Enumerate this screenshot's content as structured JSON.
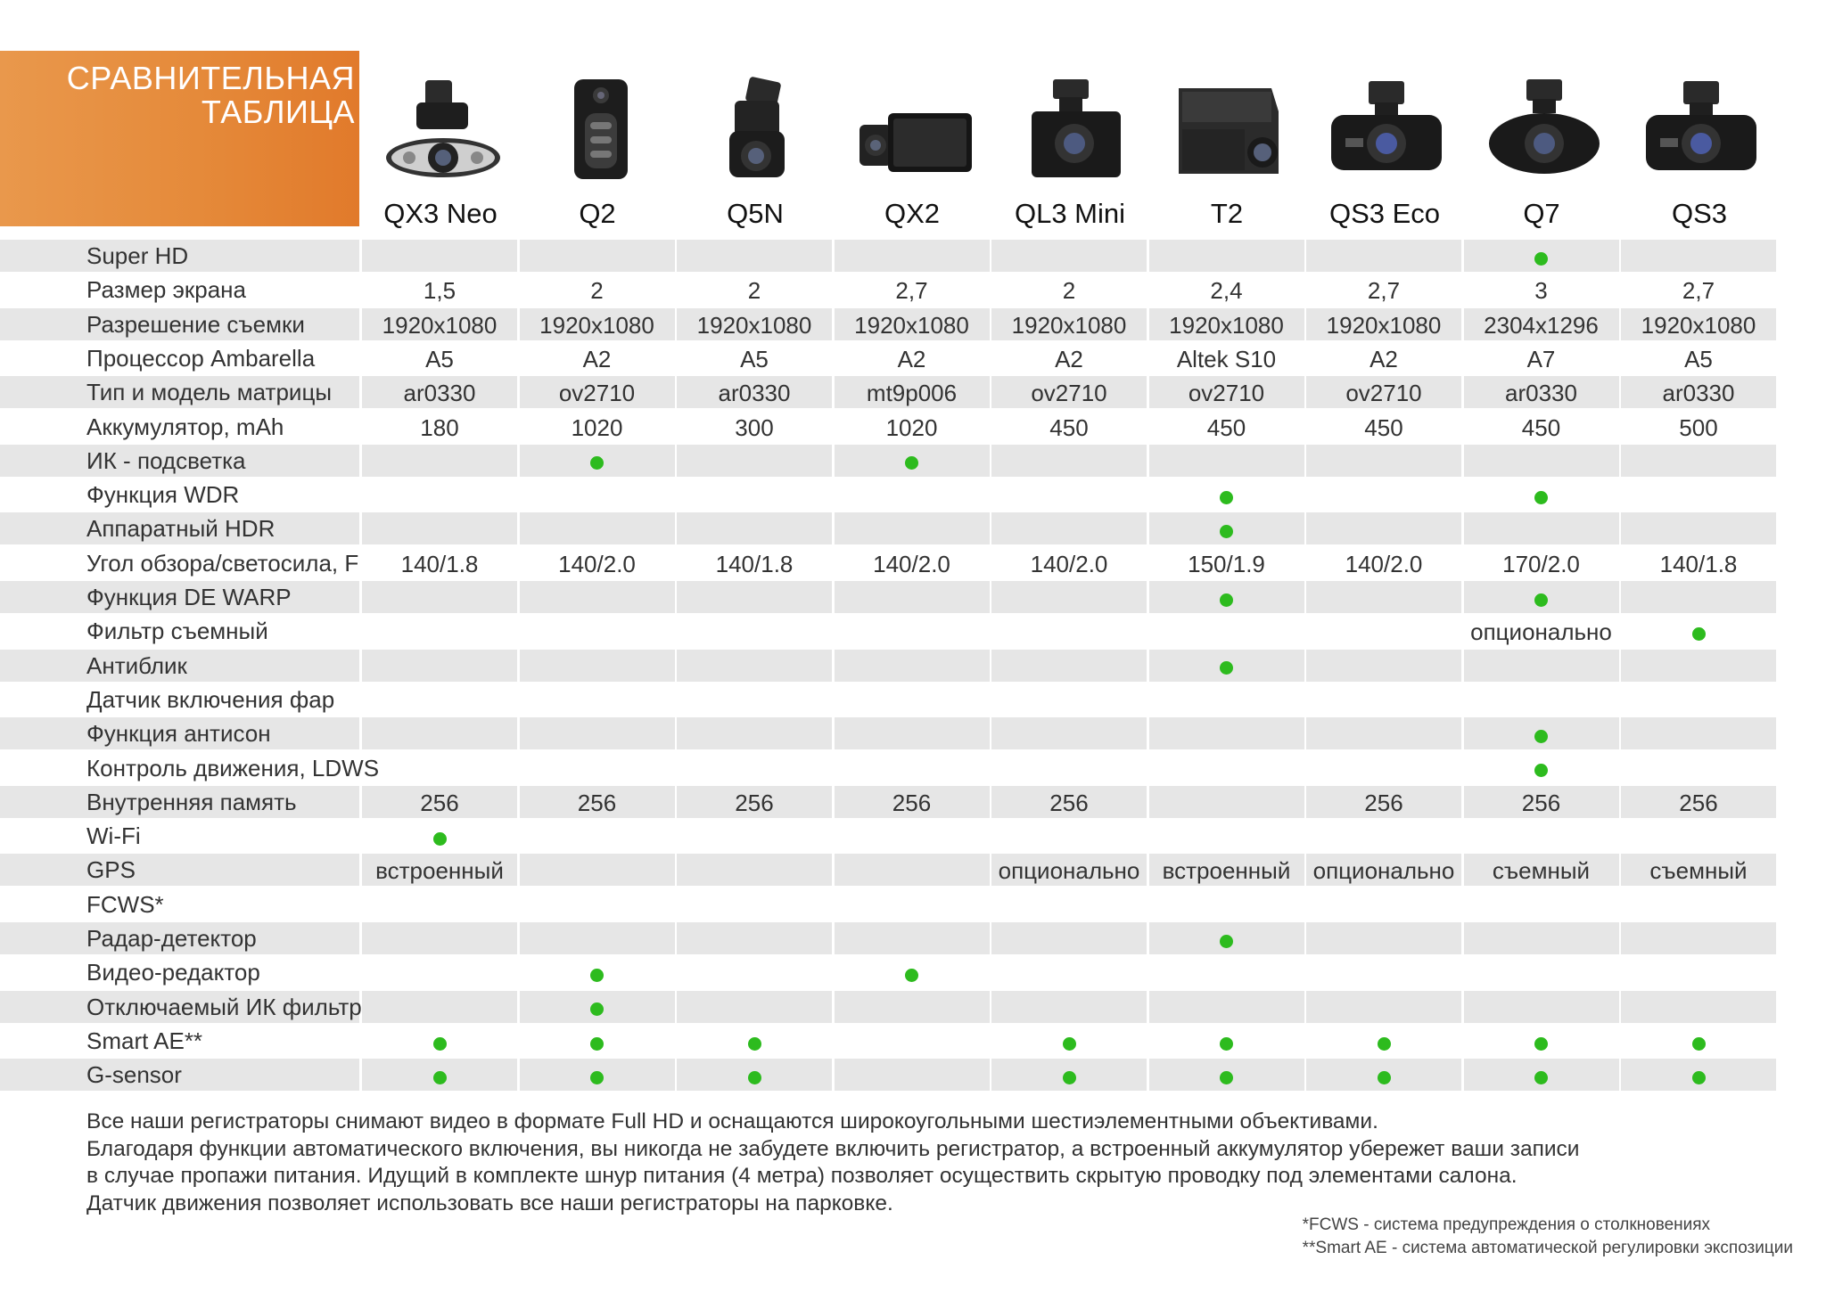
{
  "header": {
    "title_line1": "СРАВНИТЕЛЬНАЯ",
    "title_line2": "ТАБЛИЦА"
  },
  "models": [
    {
      "name": "QX3 Neo",
      "icon": "dashcam-qx3-neo-icon"
    },
    {
      "name": "Q2",
      "icon": "dashcam-q2-icon"
    },
    {
      "name": "Q5N",
      "icon": "dashcam-q5n-icon"
    },
    {
      "name": "QX2",
      "icon": "dashcam-qx2-icon"
    },
    {
      "name": "QL3 Mini",
      "icon": "dashcam-ql3-mini-icon"
    },
    {
      "name": "T2",
      "icon": "dashcam-t2-icon"
    },
    {
      "name": "QS3 Eco",
      "icon": "dashcam-qs3-eco-icon"
    },
    {
      "name": "Q7",
      "icon": "dashcam-q7-icon"
    },
    {
      "name": "QS3",
      "icon": "dashcam-qs3-icon"
    }
  ],
  "dot_color": "#2dbb1e",
  "band_color": "#e6e6e6",
  "accent_color": "#e58a3a",
  "rows": [
    {
      "label": "Super HD",
      "values": [
        "",
        "",
        "",
        "",
        "",
        "",
        "",
        "•",
        ""
      ]
    },
    {
      "label": "Размер экрана",
      "values": [
        "1,5",
        "2",
        "2",
        "2,7",
        "2",
        "2,4",
        "2,7",
        "3",
        "2,7"
      ]
    },
    {
      "label": "Разрешение съемки",
      "values": [
        "1920x1080",
        "1920x1080",
        "1920x1080",
        "1920x1080",
        "1920x1080",
        "1920x1080",
        "1920x1080",
        "2304x1296",
        "1920x1080"
      ]
    },
    {
      "label": "Процессор Ambarella",
      "values": [
        "A5",
        "A2",
        "A5",
        "A2",
        "A2",
        "Altek S10",
        "A2",
        "A7",
        "A5"
      ]
    },
    {
      "label": "Тип и модель матрицы",
      "values": [
        "ar0330",
        "ov2710",
        "ar0330",
        "mt9p006",
        "ov2710",
        "ov2710",
        "ov2710",
        "ar0330",
        "ar0330"
      ]
    },
    {
      "label": "Аккумулятор, mAh",
      "values": [
        "180",
        "1020",
        "300",
        "1020",
        "450",
        "450",
        "450",
        "450",
        "500"
      ]
    },
    {
      "label": "ИК - подсветка",
      "values": [
        "",
        "•",
        "",
        "•",
        "",
        "",
        "",
        "",
        ""
      ]
    },
    {
      "label": "Функция WDR",
      "values": [
        "",
        "",
        "",
        "",
        "",
        "•",
        "",
        "•",
        ""
      ]
    },
    {
      "label": "Аппаратный HDR",
      "values": [
        "",
        "",
        "",
        "",
        "",
        "•",
        "",
        "",
        ""
      ]
    },
    {
      "label": "Угол обзора/светосила, F",
      "values": [
        "140/1.8",
        "140/2.0",
        "140/1.8",
        "140/2.0",
        "140/2.0",
        "150/1.9",
        "140/2.0",
        "170/2.0",
        "140/1.8"
      ]
    },
    {
      "label": "Функция DE WARP",
      "values": [
        "",
        "",
        "",
        "",
        "",
        "•",
        "",
        "•",
        ""
      ]
    },
    {
      "label": "Фильтр съемный",
      "values": [
        "",
        "",
        "",
        "",
        "",
        "",
        "",
        "опционально",
        "•"
      ]
    },
    {
      "label": "Антиблик",
      "values": [
        "",
        "",
        "",
        "",
        "",
        "•",
        "",
        "",
        ""
      ]
    },
    {
      "label": "Датчик включения фар",
      "values": [
        "",
        "",
        "",
        "",
        "",
        "",
        "",
        "",
        ""
      ]
    },
    {
      "label": "Функция антисон",
      "values": [
        "",
        "",
        "",
        "",
        "",
        "",
        "",
        "•",
        ""
      ]
    },
    {
      "label": "Контроль движения, LDWS",
      "values": [
        "",
        "",
        "",
        "",
        "",
        "",
        "",
        "•",
        ""
      ]
    },
    {
      "label": "Внутренняя память",
      "values": [
        "256",
        "256",
        "256",
        "256",
        "256",
        "",
        "256",
        "256",
        "256"
      ]
    },
    {
      "label": "Wi-Fi",
      "values": [
        "•",
        "",
        "",
        "",
        "",
        "",
        "",
        "",
        ""
      ]
    },
    {
      "label": "GPS",
      "values": [
        "встроенный",
        "",
        "",
        "",
        "опционально",
        "встроенный",
        "опционально",
        "съемный",
        "съемный"
      ]
    },
    {
      "label": "FCWS*",
      "values": [
        "",
        "",
        "",
        "",
        "",
        "",
        "",
        "",
        ""
      ]
    },
    {
      "label": "Радар-детектор",
      "values": [
        "",
        "",
        "",
        "",
        "",
        "•",
        "",
        "",
        ""
      ]
    },
    {
      "label": "Видео-редактор",
      "values": [
        "",
        "•",
        "",
        "•",
        "",
        "",
        "",
        "",
        ""
      ]
    },
    {
      "label": "Отключаемый ИК фильтр",
      "values": [
        "",
        "•",
        "",
        "",
        "",
        "",
        "",
        "",
        ""
      ]
    },
    {
      "label": "Smart AE**",
      "values": [
        "•",
        "•",
        "•",
        "",
        "•",
        "•",
        "•",
        "•",
        "•"
      ]
    },
    {
      "label": "G-sensor",
      "values": [
        "•",
        "•",
        "•",
        "",
        "•",
        "•",
        "•",
        "•",
        "•"
      ]
    }
  ],
  "footer": {
    "line1": "Все наши регистраторы снимают видео в формате Full HD и оснащаются широкоугольными шестиэлементными объективами.",
    "line2": "Благодаря функции автоматического включения, вы никогда не забудете включить регистратор, а встроенный аккумулятор убережет ваши записи",
    "line3": "в случае пропажи питания. Идущий в комплекте шнур питания (4 метра) позволяет осуществить скрытую проводку под элементами салона.",
    "line4": "Датчик движения позволяет использовать все наши регистраторы на парковке."
  },
  "notes": {
    "fcws": "*FCWS - система предупреждения о столкновениях",
    "smart_ae": "**Smart AE - система автоматической регулировки экспозиции"
  }
}
